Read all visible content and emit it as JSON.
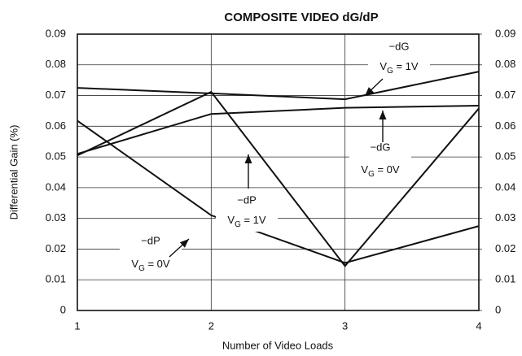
{
  "chart_data": {
    "type": "line",
    "title": "COMPOSITE VIDEO dG/dP",
    "x_label": "Number of Video Loads",
    "y_label": "Differential Gain (%)",
    "x": [
      1,
      2,
      3,
      4
    ],
    "xlim": [
      1,
      4
    ],
    "xticks": [
      1,
      2,
      3,
      4
    ],
    "ylim": [
      0,
      0.09
    ],
    "yticks": [
      0,
      0.01,
      0.02,
      0.03,
      0.04,
      0.05,
      0.06,
      0.07,
      0.08,
      0.09
    ],
    "y2lim": [
      0,
      0.09
    ],
    "y2ticks": [
      0,
      0.01,
      0.02,
      0.03,
      0.04,
      0.05,
      0.06,
      0.07,
      0.08,
      0.09
    ],
    "grid": true,
    "series": [
      {
        "color": "#111111",
        "values": [
          0.0725,
          0.0707,
          0.0688,
          0.0778
        ]
      },
      {
        "color": "#111111",
        "values": [
          0.051,
          0.064,
          0.066,
          0.0667
        ]
      },
      {
        "color": "#111111",
        "values": [
          0.0505,
          0.0712,
          0.0145,
          0.0658
        ]
      },
      {
        "color": "#111111",
        "values": [
          0.0618,
          0.031,
          0.0155,
          0.0275
        ]
      }
    ],
    "annotations": [
      {
        "name": "−dG",
        "var": "V",
        "sub": "G",
        "rest": " = 1V"
      },
      {
        "name": "−dG",
        "var": "V",
        "sub": "G",
        "rest": " = 0V"
      },
      {
        "name": "−dP",
        "var": "V",
        "sub": "G",
        "rest": " = 1V"
      },
      {
        "name": "−dP",
        "var": "V",
        "sub": "G",
        "rest": " = 0V"
      }
    ]
  }
}
